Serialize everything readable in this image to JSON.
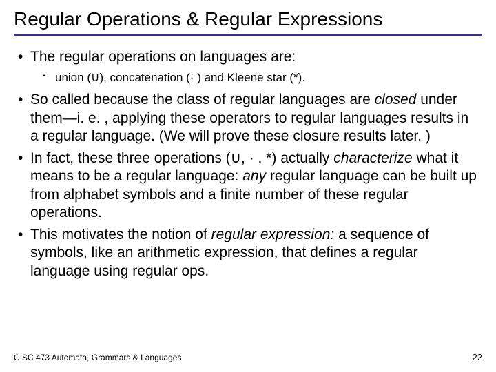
{
  "title": "Regular Operations & Regular Expressions",
  "bullets": {
    "b1": "The regular operations on languages are:",
    "b1_sub_pre": "union (",
    "b1_sub_sym1": "∪",
    "b1_sub_mid1": "), concatenation (",
    "b1_sub_sym2": "·",
    "b1_sub_mid2": " ) and Kleene star (*).",
    "b2_pre": "So called because the class of regular languages are ",
    "b2_em": "closed",
    "b2_post": " under them—i. e. , applying these operators to regular languages results in a regular language. (We will prove these closure results later. )",
    "b3_pre": "In fact, these three operations (",
    "b3_sym1": "∪",
    "b3_mid1": ", ",
    "b3_sym2": "·",
    "b3_mid2": " , *) actually ",
    "b3_em1": "characterize",
    "b3_mid3": " what it means to be a regular language:  ",
    "b3_em2": "any",
    "b3_post": " regular language can be built up from alphabet symbols and a finite number of these regular operations.",
    "b4_pre": "This motivates the notion of ",
    "b4_em": "regular expression:",
    "b4_post": " a sequence of symbols, like an arithmetic expression, that defines a regular language using regular ops."
  },
  "footer": {
    "left": "C SC 473 Automata, Grammars & Languages",
    "page": "22"
  },
  "colors": {
    "rule": "#2e2e9e",
    "text": "#000000",
    "background": "#ffffff"
  },
  "typography": {
    "title_fontsize": 28,
    "body_fontsize": 21,
    "sub_fontsize": 17,
    "footer_fontsize": 12
  }
}
